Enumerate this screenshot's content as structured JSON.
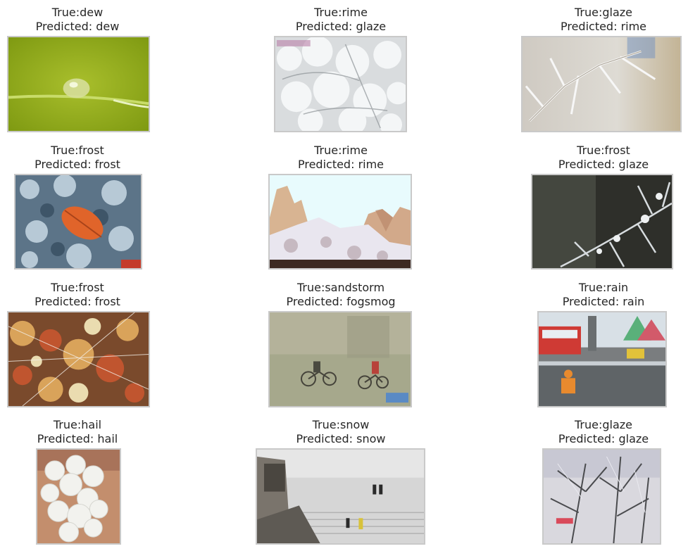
{
  "grid": [
    {
      "true_label": "True:dew",
      "predicted_label": "Predicted: dew",
      "image": "dew-drop-on-grass"
    },
    {
      "true_label": "True:rime",
      "predicted_label": "Predicted: glaze",
      "image": "rime-covered-branches"
    },
    {
      "true_label": "True:glaze",
      "predicted_label": "Predicted: rime",
      "image": "frosted-twigs"
    },
    {
      "true_label": "True:frost",
      "predicted_label": "Predicted: frost",
      "image": "frosted-leaf-on-shrub"
    },
    {
      "true_label": "True:rime",
      "predicted_label": "Predicted: rime",
      "image": "rime-on-rocky-mountain"
    },
    {
      "true_label": "True:frost",
      "predicted_label": "Predicted: glaze",
      "image": "frosted-branch-dark-bg"
    },
    {
      "true_label": "True:frost",
      "predicted_label": "Predicted: frost",
      "image": "frosted-autumn-leaves"
    },
    {
      "true_label": "True:sandstorm",
      "predicted_label": "Predicted: fogsmog",
      "image": "cyclists-in-dust"
    },
    {
      "true_label": "True:rain",
      "predicted_label": "Predicted: rain",
      "image": "flooded-street-worker"
    },
    {
      "true_label": "True:hail",
      "predicted_label": "Predicted: hail",
      "image": "hailstones-in-hand"
    },
    {
      "true_label": "True:snow",
      "predicted_label": "Predicted: snow",
      "image": "snowy-stairs-people"
    },
    {
      "true_label": "True:glaze",
      "predicted_label": "Predicted: glaze",
      "image": "iced-pine-needles"
    }
  ]
}
